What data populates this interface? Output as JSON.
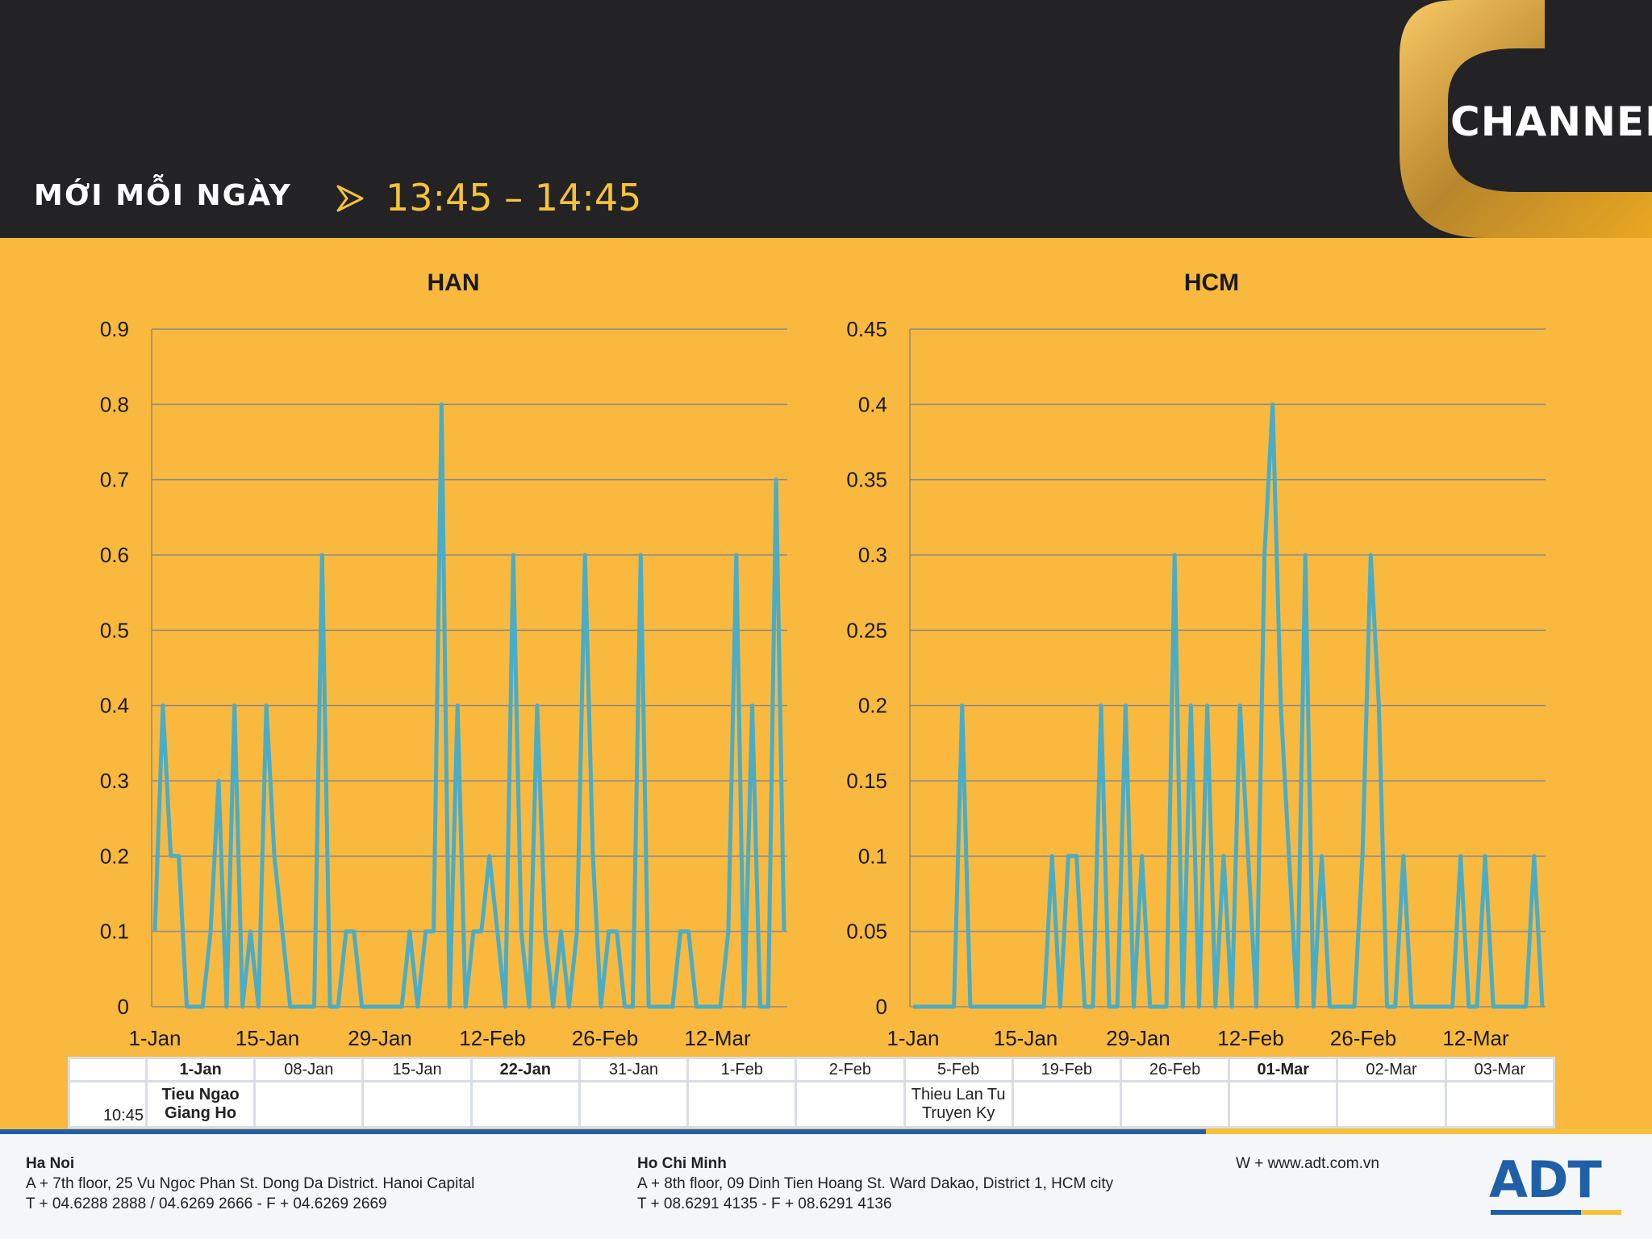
{
  "header": {
    "tagline": "MỚI MỖI NGÀY",
    "time_range": "13:45 – 14:45",
    "channel_name": "CHANNEL"
  },
  "chart_data": [
    {
      "type": "line",
      "title": "HAN",
      "xlabel": "",
      "ylabel": "",
      "ylim": [
        0,
        0.9
      ],
      "yticks": [
        "0",
        "0.1",
        "0.2",
        "0.3",
        "0.4",
        "0.5",
        "0.6",
        "0.7",
        "0.8",
        "0.9"
      ],
      "xtick_labels": [
        "1-Jan",
        "15-Jan",
        "29-Jan",
        "12-Feb",
        "26-Feb",
        "12-Mar"
      ],
      "grid": true,
      "series": [
        {
          "name": "HAN",
          "color": "#4bacc6",
          "values": [
            0.1,
            0.4,
            0.2,
            0.2,
            0,
            0,
            0,
            0.1,
            0.3,
            0,
            0.4,
            0,
            0.1,
            0,
            0.4,
            0.2,
            0.1,
            0,
            0,
            0,
            0,
            0.6,
            0,
            0,
            0.1,
            0.1,
            0,
            0,
            0,
            0,
            0,
            0,
            0.1,
            0,
            0.1,
            0.1,
            0.8,
            0,
            0.4,
            0,
            0.1,
            0.1,
            0.2,
            0.1,
            0,
            0.6,
            0.1,
            0,
            0.4,
            0.1,
            0,
            0.1,
            0,
            0.1,
            0.6,
            0.2,
            0,
            0.1,
            0.1,
            0,
            0,
            0.6,
            0,
            0,
            0,
            0,
            0.1,
            0.1,
            0,
            0,
            0,
            0,
            0.1,
            0.6,
            0,
            0.4,
            0,
            0,
            0.7,
            0.1
          ]
        }
      ]
    },
    {
      "type": "line",
      "title": "HCM",
      "xlabel": "",
      "ylabel": "",
      "ylim": [
        0,
        0.45
      ],
      "yticks": [
        "0",
        "0.05",
        "0.1",
        "0.15",
        "0.2",
        "0.25",
        "0.3",
        "0.35",
        "0.4",
        "0.45"
      ],
      "xtick_labels": [
        "1-Jan",
        "15-Jan",
        "29-Jan",
        "12-Feb",
        "26-Feb",
        "12-Mar"
      ],
      "grid": true,
      "series": [
        {
          "name": "HCM",
          "color": "#4bacc6",
          "values": [
            0,
            0,
            0,
            0,
            0,
            0,
            0.2,
            0,
            0,
            0,
            0,
            0,
            0,
            0,
            0,
            0,
            0,
            0.1,
            0,
            0.1,
            0.1,
            0,
            0,
            0.2,
            0,
            0,
            0.2,
            0,
            0.1,
            0,
            0,
            0,
            0.3,
            0,
            0.2,
            0,
            0.2,
            0,
            0.1,
            0,
            0.2,
            0.1,
            0,
            0.3,
            0.4,
            0.2,
            0.1,
            0,
            0.3,
            0,
            0.1,
            0,
            0,
            0,
            0,
            0.1,
            0.3,
            0.2,
            0,
            0,
            0.1,
            0,
            0,
            0,
            0,
            0,
            0,
            0.1,
            0,
            0,
            0.1,
            0,
            0,
            0,
            0,
            0,
            0.1,
            0
          ]
        }
      ]
    }
  ],
  "schedule": {
    "dates": [
      "1-Jan",
      "08-Jan",
      "15-Jan",
      "22-Jan",
      "31-Jan",
      "1-Feb",
      "2-Feb",
      "5-Feb",
      "19-Feb",
      "26-Feb",
      "01-Mar",
      "02-Mar",
      "03-Mar"
    ],
    "bold_indices": [
      0,
      3,
      10
    ],
    "row_time": "10:45",
    "program_1": [
      "Tieu Ngao",
      "Giang Ho"
    ],
    "program_2": [
      "Thieu Lan Tu",
      "Truyen Ky"
    ]
  },
  "footer": {
    "hanoi": {
      "city": "Ha Noi",
      "address": "A + 7th floor, 25 Vu Ngoc Phan St. Dong Da District. Hanoi Capital",
      "phone": "T + 04.6288 2888 / 04.6269 2666 - F + 04.6269 2669"
    },
    "hcm": {
      "city": "Ho Chi Minh",
      "address": "A + 8th floor, 09 Dinh Tien Hoang St. Ward Dakao, District 1, HCM city",
      "phone": "T + 08.6291 4135 - F + 08.6291 4136"
    },
    "website": "W + www.adt.com.vn",
    "logo": "ADT"
  }
}
